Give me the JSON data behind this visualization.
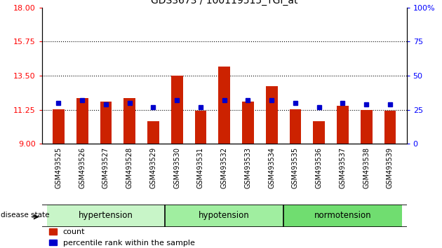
{
  "title": "GDS3673 / 100119515_TGI_at",
  "samples": [
    "GSM493525",
    "GSM493526",
    "GSM493527",
    "GSM493528",
    "GSM493529",
    "GSM493530",
    "GSM493531",
    "GSM493532",
    "GSM493533",
    "GSM493534",
    "GSM493535",
    "GSM493536",
    "GSM493537",
    "GSM493538",
    "GSM493539"
  ],
  "count_values": [
    11.3,
    12.0,
    11.8,
    12.0,
    10.5,
    13.5,
    11.2,
    14.1,
    11.8,
    12.8,
    11.3,
    10.5,
    11.5,
    11.25,
    11.2
  ],
  "percentile_values": [
    30,
    32,
    29,
    30,
    27,
    32,
    27,
    32,
    32,
    32,
    30,
    27,
    30,
    29,
    29
  ],
  "groups": [
    {
      "label": "hypertension",
      "start": 0,
      "end": 4
    },
    {
      "label": "hypotension",
      "start": 5,
      "end": 9
    },
    {
      "label": "normotension",
      "start": 10,
      "end": 14
    }
  ],
  "group_colors": [
    "#c8f5c8",
    "#a0eea0",
    "#70dd70"
  ],
  "ylim_left": [
    9,
    18
  ],
  "ylim_right": [
    0,
    100
  ],
  "yticks_left": [
    9,
    11.25,
    13.5,
    15.75,
    18
  ],
  "yticks_right": [
    0,
    25,
    50,
    75,
    100
  ],
  "hlines": [
    11.25,
    13.5,
    15.75
  ],
  "bar_color": "#cc2200",
  "percentile_color": "#0000cc",
  "bar_width": 0.5,
  "legend_items": [
    "count",
    "percentile rank within the sample"
  ],
  "legend_colors": [
    "#cc2200",
    "#0000cc"
  ],
  "disease_state_label": "disease state"
}
